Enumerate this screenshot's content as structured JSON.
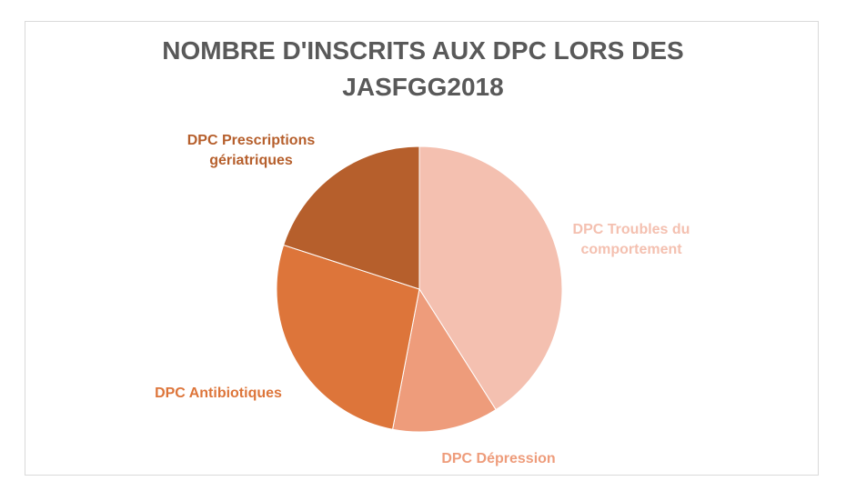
{
  "chart_data": {
    "type": "pie",
    "title_lines": [
      "NOMBRE D'INSCRITS AUX DPC LORS DES",
      "JASFGG2018"
    ],
    "start_angle_deg": 0,
    "direction": "clockwise",
    "slices": [
      {
        "label_lines": [
          "DPC Troubles du",
          "comportement"
        ],
        "value": 41,
        "color": "#f4c0b0"
      },
      {
        "label_lines": [
          "DPC Dépression"
        ],
        "value": 12,
        "color": "#ee9c7b"
      },
      {
        "label_lines": [
          "DPC Antibiotiques"
        ],
        "value": 27,
        "color": "#dd753a"
      },
      {
        "label_lines": [
          "DPC Prescriptions",
          "gériatriques"
        ],
        "value": 20,
        "color": "#b65f2c"
      }
    ]
  }
}
